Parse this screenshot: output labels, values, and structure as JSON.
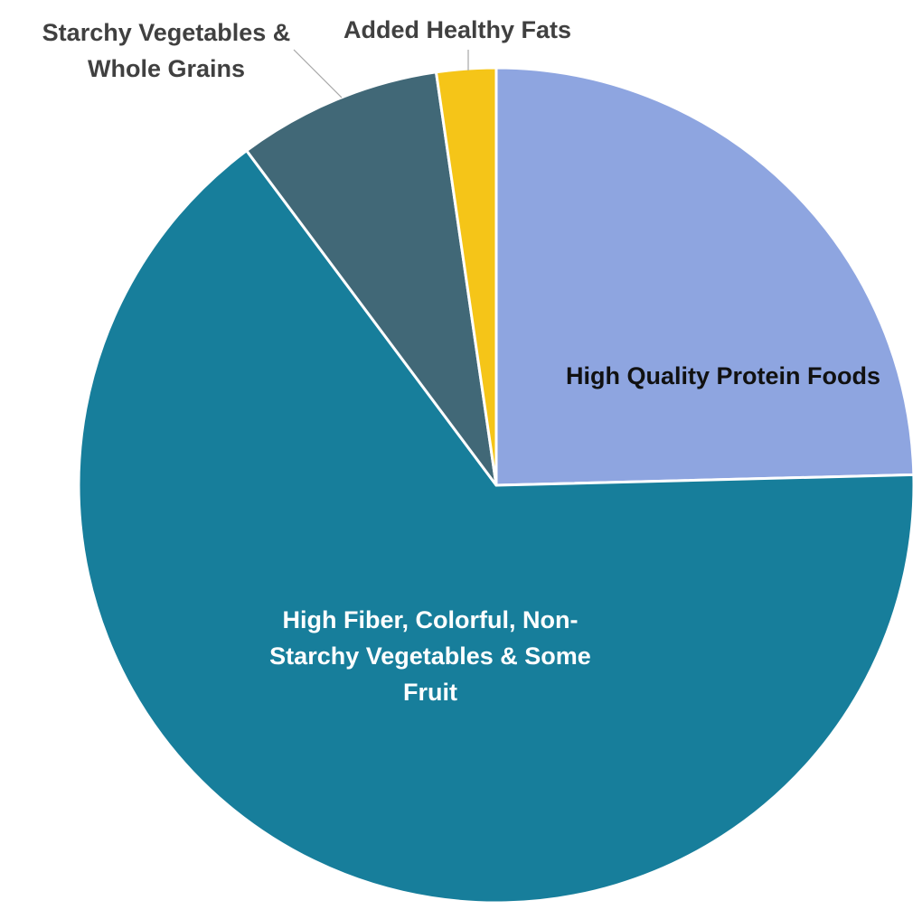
{
  "chart_data": {
    "type": "pie",
    "title": "",
    "legend": "none",
    "start_angle_deg": 0,
    "direction": "clockwise",
    "slices": [
      {
        "label": "High Quality Protein Foods",
        "label_lines": [
          "High Quality Protein Foods"
        ],
        "value": 24.6,
        "color": "#8EA5E0",
        "label_color": "#111111",
        "label_position": "inside"
      },
      {
        "label": "High Fiber, Colorful, Non-Starchy Vegetables & Some Fruit",
        "label_lines": [
          "High Fiber, Colorful, Non-",
          "Starchy Vegetables & Some",
          "Fruit"
        ],
        "value": 65.2,
        "color": "#177E9B",
        "label_color": "#FFFFFF",
        "label_position": "inside"
      },
      {
        "label": "Starchy Vegetables & Whole Grains",
        "label_lines": [
          "Starchy Vegetables &",
          "Whole Grains"
        ],
        "value": 7.9,
        "color": "#416877",
        "label_color": "#404040",
        "label_position": "outside"
      },
      {
        "label": "Added Healthy Fats",
        "label_lines": [
          "Added Healthy Fats"
        ],
        "value": 2.3,
        "color": "#F5C518",
        "label_color": "#404040",
        "label_position": "outside"
      }
    ]
  }
}
